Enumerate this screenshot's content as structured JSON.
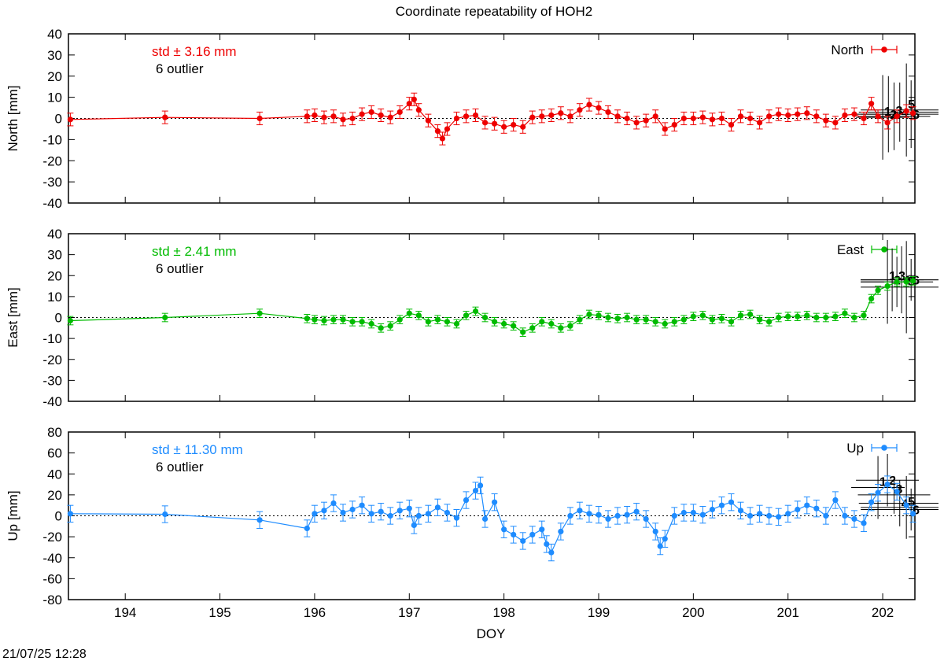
{
  "chart_data": {
    "type": "scatter",
    "title": "Coordinate repeatability of HOH2",
    "xlabel": "DOY",
    "timestamp": "21/07/25 12:28",
    "xlim": [
      193.4,
      202.34
    ],
    "xticks": [
      "194",
      "195",
      "196",
      "197",
      "198",
      "199",
      "200",
      "201",
      "202"
    ],
    "panels": [
      {
        "name": "North",
        "ylabel": "North [mm]",
        "ylim": [
          -40,
          40
        ],
        "yticks": [
          "-40",
          "-30",
          "-20",
          "-10",
          "0",
          "10",
          "20",
          "30",
          "40"
        ],
        "color": "#ee0000",
        "std_label": "std ± 3.16 mm",
        "outlier_label": "6 outlier",
        "outlier_numbers": [
          "1",
          "2",
          "3",
          "4",
          "5",
          "6"
        ],
        "x": [
          193.42,
          194.42,
          195.42,
          195.92,
          196.0,
          196.1,
          196.2,
          196.3,
          196.4,
          196.5,
          196.6,
          196.7,
          196.8,
          196.9,
          197.0,
          197.05,
          197.1,
          197.2,
          197.3,
          197.35,
          197.4,
          197.5,
          197.6,
          197.7,
          197.8,
          197.9,
          198.0,
          198.1,
          198.2,
          198.3,
          198.4,
          198.5,
          198.6,
          198.7,
          198.8,
          198.9,
          199.0,
          199.1,
          199.2,
          199.3,
          199.4,
          199.5,
          199.6,
          199.7,
          199.8,
          199.9,
          200.0,
          200.1,
          200.2,
          200.3,
          200.4,
          200.5,
          200.6,
          200.7,
          200.8,
          200.9,
          201.0,
          201.1,
          201.2,
          201.3,
          201.4,
          201.5,
          201.6,
          201.7,
          201.8,
          201.88,
          201.95,
          202.05,
          202.15,
          202.25,
          202.32
        ],
        "y": [
          -0.5,
          0.5,
          0.0,
          1.0,
          1.5,
          0.5,
          1.0,
          -0.5,
          0.0,
          2.0,
          3.0,
          1.5,
          0.5,
          3.0,
          7.0,
          9.0,
          4.0,
          -1.0,
          -6.0,
          -9.5,
          -5.0,
          0.0,
          1.0,
          1.5,
          -2.0,
          -2.5,
          -4.0,
          -3.0,
          -4.0,
          0.5,
          1.0,
          1.5,
          2.5,
          1.0,
          4.0,
          6.5,
          5.0,
          3.0,
          1.0,
          0.0,
          -2.0,
          -1.0,
          1.0,
          -5.0,
          -3.0,
          0.0,
          0.0,
          0.5,
          -0.5,
          0.0,
          -3.0,
          1.0,
          0.0,
          -2.0,
          1.0,
          2.0,
          1.5,
          2.0,
          2.5,
          1.0,
          -1.0,
          -2.0,
          1.5,
          2.0,
          0.0,
          7.0,
          1.0,
          -2.0,
          1.0,
          3.5,
          2.5
        ],
        "yerr": 3,
        "outliers": [
          {
            "x": 202.0,
            "y": 0.5,
            "err": 20
          },
          {
            "x": 202.06,
            "y": 2.0,
            "err": 18
          },
          {
            "x": 202.12,
            "y": 1.0,
            "err": 16
          },
          {
            "x": 202.18,
            "y": 3.0,
            "err": 14
          },
          {
            "x": 202.25,
            "y": 4.0,
            "err": 22
          },
          {
            "x": 202.3,
            "y": 2.0,
            "err": 16
          }
        ]
      },
      {
        "name": "East",
        "ylabel": "East [mm]",
        "ylim": [
          -40,
          40
        ],
        "yticks": [
          "-40",
          "-30",
          "-20",
          "-10",
          "0",
          "10",
          "20",
          "30",
          "40"
        ],
        "color": "#00bb00",
        "std_label": "std ± 2.41 mm",
        "outlier_label": "6 outlier",
        "outlier_numbers": [
          "1",
          "2",
          "3",
          "4",
          "5",
          "6"
        ],
        "x": [
          193.42,
          194.42,
          195.42,
          195.92,
          196.0,
          196.1,
          196.2,
          196.3,
          196.4,
          196.5,
          196.6,
          196.7,
          196.8,
          196.9,
          197.0,
          197.1,
          197.2,
          197.3,
          197.4,
          197.5,
          197.6,
          197.7,
          197.8,
          197.9,
          198.0,
          198.1,
          198.2,
          198.3,
          198.4,
          198.5,
          198.6,
          198.7,
          198.8,
          198.9,
          199.0,
          199.1,
          199.2,
          199.3,
          199.4,
          199.5,
          199.6,
          199.7,
          199.8,
          199.9,
          200.0,
          200.1,
          200.2,
          200.3,
          200.4,
          200.5,
          200.6,
          200.7,
          200.8,
          200.9,
          201.0,
          201.1,
          201.2,
          201.3,
          201.4,
          201.5,
          201.6,
          201.7,
          201.8,
          201.88,
          201.95,
          202.05,
          202.15,
          202.25,
          202.32
        ],
        "y": [
          -1.5,
          0.0,
          2.0,
          -0.5,
          -1.0,
          -1.5,
          -1.0,
          -1.0,
          -2.0,
          -2.0,
          -3.0,
          -5.0,
          -4.0,
          -1.0,
          2.0,
          1.0,
          -2.0,
          -1.0,
          -2.0,
          -3.0,
          1.0,
          3.0,
          0.0,
          -2.0,
          -3.0,
          -4.0,
          -7.0,
          -5.0,
          -2.0,
          -3.0,
          -5.0,
          -4.0,
          -1.0,
          1.5,
          1.0,
          0.0,
          -0.5,
          0.0,
          -1.0,
          -1.0,
          -2.0,
          -3.0,
          -2.0,
          -1.0,
          0.5,
          1.0,
          -1.0,
          -0.5,
          -2.0,
          1.0,
          1.5,
          -1.0,
          -2.0,
          0.0,
          0.5,
          0.5,
          1.0,
          0.0,
          0.0,
          0.5,
          2.0,
          0.0,
          1.0,
          9.0,
          13.0,
          15.0,
          17.0,
          17.0,
          17.5
        ],
        "yerr": 2,
        "outliers": [
          {
            "x": 202.05,
            "y": 17.0,
            "err": 20
          },
          {
            "x": 202.1,
            "y": 18.0,
            "err": 15
          },
          {
            "x": 202.15,
            "y": 17.0,
            "err": 12
          },
          {
            "x": 202.2,
            "y": 18.0,
            "err": 16
          },
          {
            "x": 202.25,
            "y": 14.5,
            "err": 22
          },
          {
            "x": 202.3,
            "y": 18.0,
            "err": 10
          }
        ]
      },
      {
        "name": "Up",
        "ylabel": "Up [mm]",
        "ylim": [
          -80,
          80
        ],
        "yticks": [
          "-80",
          "-60",
          "-40",
          "-20",
          "0",
          "20",
          "40",
          "60",
          "80"
        ],
        "color": "#1e8cff",
        "std_label": "std ± 11.30 mm",
        "outlier_label": "6 outlier",
        "outlier_numbers": [
          "1",
          "2",
          "3",
          "4",
          "5",
          "6"
        ],
        "x": [
          193.42,
          194.42,
          195.42,
          195.92,
          196.0,
          196.1,
          196.2,
          196.3,
          196.4,
          196.5,
          196.6,
          196.7,
          196.8,
          196.9,
          197.0,
          197.05,
          197.1,
          197.2,
          197.3,
          197.4,
          197.5,
          197.6,
          197.7,
          197.75,
          197.8,
          197.9,
          198.0,
          198.1,
          198.2,
          198.3,
          198.4,
          198.45,
          198.5,
          198.6,
          198.7,
          198.8,
          198.9,
          199.0,
          199.1,
          199.2,
          199.3,
          199.4,
          199.5,
          199.6,
          199.65,
          199.7,
          199.8,
          199.9,
          200.0,
          200.1,
          200.2,
          200.3,
          200.4,
          200.5,
          200.6,
          200.7,
          200.8,
          200.9,
          201.0,
          201.1,
          201.2,
          201.3,
          201.4,
          201.5,
          201.6,
          201.7,
          201.8,
          201.88,
          201.95,
          202.05,
          202.15,
          202.25,
          202.32
        ],
        "y": [
          2.0,
          1.5,
          -4.0,
          -12.0,
          2.0,
          5.0,
          12.0,
          3.0,
          6.0,
          10.0,
          2.0,
          4.0,
          0.0,
          5.0,
          7.0,
          -9.0,
          0.0,
          2.0,
          8.0,
          3.0,
          -2.0,
          15.0,
          24.0,
          29.0,
          -3.0,
          13.0,
          -13.0,
          -18.0,
          -24.0,
          -18.0,
          -13.0,
          -27.0,
          -35.0,
          -15.0,
          0.0,
          5.0,
          2.0,
          1.0,
          -3.0,
          0.0,
          1.0,
          4.0,
          -3.0,
          -15.0,
          -29.0,
          -22.0,
          0.0,
          3.0,
          3.0,
          1.0,
          6.0,
          10.0,
          13.0,
          5.0,
          0.0,
          2.0,
          0.0,
          -1.0,
          2.0,
          6.0,
          10.0,
          7.0,
          0.0,
          15.0,
          0.0,
          -3.0,
          -7.0,
          13.0,
          22.0,
          30.0,
          23.0,
          10.0,
          2.0
        ],
        "yerr": 8,
        "outliers": [
          {
            "x": 201.95,
            "y": 27.0,
            "err": 30
          },
          {
            "x": 202.05,
            "y": 34.0,
            "err": 25
          },
          {
            "x": 202.12,
            "y": 20.0,
            "err": 18
          },
          {
            "x": 202.18,
            "y": 12.0,
            "err": 22
          },
          {
            "x": 202.25,
            "y": 8.0,
            "err": 30
          },
          {
            "x": 202.3,
            "y": 6.0,
            "err": 20
          }
        ]
      }
    ]
  }
}
